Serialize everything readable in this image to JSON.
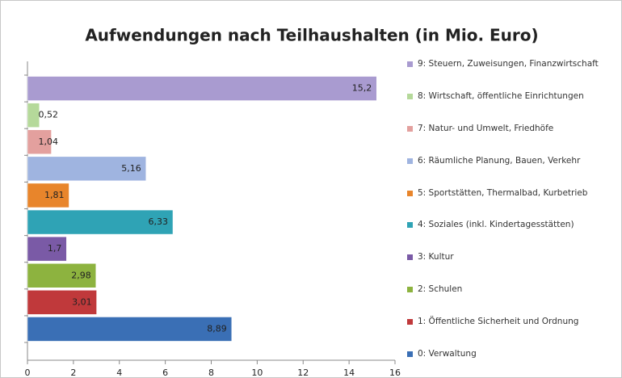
{
  "chart_data": {
    "type": "barh",
    "title": "Aufwendungen nach Teilhaushalten (in Mio. Euro)",
    "categories": [
      "9: Steuern, Zuweisungen, Finanzwirtschaft",
      "8: Wirtschaft, öffentliche Einrichtungen",
      "7: Natur- und Umwelt, Friedhöfe",
      "6: Räumliche Planung, Bauen, Verkehr",
      "5: Sportstätten, Thermalbad, Kurbetrieb",
      "4: Soziales (inkl. Kindertagesstätten)",
      "3: Kultur",
      "2: Schulen",
      "1: Öffentliche Sicherheit und Ordnung",
      "0: Verwaltung"
    ],
    "values": [
      15.2,
      0.52,
      1.04,
      5.16,
      1.81,
      6.33,
      1.7,
      2.98,
      3.01,
      8.89
    ],
    "value_labels": [
      "15,2",
      "0,52",
      "1,04",
      "5,16",
      "1,81",
      "6,33",
      "1,7",
      "2,98",
      "3,01",
      "8,89"
    ],
    "colors": [
      "#a99bd0",
      "#b5d99a",
      "#e3a09e",
      "#9fb4e0",
      "#e8852b",
      "#2fa3b5",
      "#7a5aa6",
      "#8db33f",
      "#c0393b",
      "#3a6fb5"
    ],
    "xlim": [
      0,
      16
    ],
    "xticks": [
      0,
      2,
      4,
      6,
      8,
      10,
      12,
      14,
      16
    ],
    "legend": "right"
  }
}
